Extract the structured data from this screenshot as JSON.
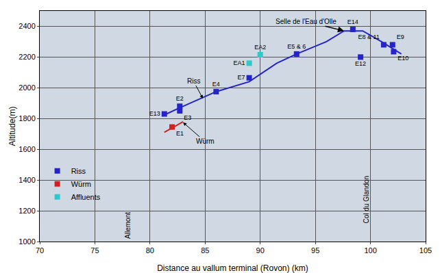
{
  "chart_data": {
    "type": "scatter",
    "x_label": "Distance au vallum terminal (Rovon) (km)",
    "y_label": "Altitude(m)",
    "xlim": [
      70,
      105
    ],
    "xticks": [
      70,
      75,
      80,
      85,
      90,
      95,
      100,
      105
    ],
    "ylim": [
      1000,
      2500
    ],
    "yticks": [
      1000,
      1200,
      1400,
      1600,
      1800,
      2000,
      2200,
      2400
    ],
    "grid": true,
    "legend": "left",
    "series": [
      {
        "name": "Riss",
        "color": "#2424c8",
        "marker": "square",
        "x": [
          81.3,
          82.7,
          82.7,
          86.0,
          89.0,
          93.3,
          98.4,
          99.1,
          101.2,
          102.0,
          102.1
        ],
        "values": [
          1830,
          1880,
          1850,
          1975,
          2065,
          2220,
          2380,
          2200,
          2280,
          2280,
          2235
        ],
        "labels": [
          "E13",
          "E2",
          "E3",
          "E4",
          "E7",
          "E5 & 6",
          "E14",
          "E12",
          "E8 & 11",
          "E9",
          "E10"
        ],
        "line": {
          "x": [
            81.5,
            83.0,
            86.0,
            89.0,
            91.5,
            93.3,
            96.0,
            97.6,
            99.3,
            101.0,
            102.8
          ],
          "values": [
            1830,
            1880,
            1975,
            2040,
            2160,
            2220,
            2300,
            2370,
            2370,
            2300,
            2220
          ]
        }
      },
      {
        "name": "Würm",
        "color": "#d02020",
        "marker": "square",
        "x": [
          82.0
        ],
        "values": [
          1745
        ],
        "labels": [
          "E1"
        ],
        "line": {
          "x": [
            81.3,
            83.0
          ],
          "values": [
            1710,
            1780
          ]
        }
      },
      {
        "name": "Affluents",
        "color": "#30c8c8",
        "marker": "square",
        "x": [
          89.0,
          90.0
        ],
        "values": [
          2160,
          2215
        ],
        "labels": [
          "EA1",
          "EA2"
        ]
      }
    ],
    "annotations": [
      {
        "text": "Selle de l'Eau d'Olle",
        "x": 97.6,
        "y": 2370
      },
      {
        "text": "Riss",
        "x": 84.8,
        "y": 1930
      },
      {
        "text": "Würm",
        "x": 83.0,
        "y": 1775
      },
      {
        "text": "Allemont",
        "x": 78.0,
        "y": 1010
      },
      {
        "text": "Col du Glandon",
        "x": 99.6,
        "y": 1110
      }
    ]
  }
}
